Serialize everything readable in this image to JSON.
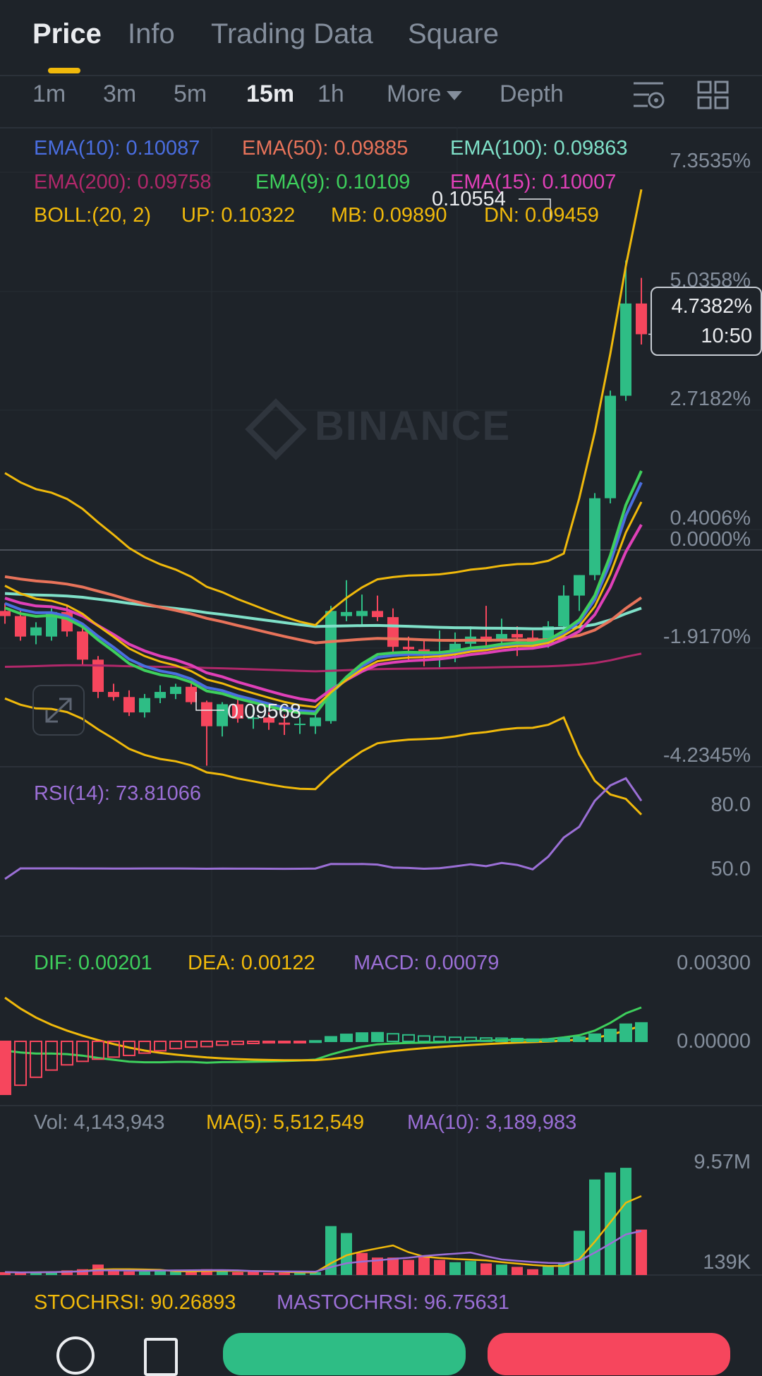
{
  "tabs": [
    {
      "label": "Price",
      "active": true
    },
    {
      "label": "Info"
    },
    {
      "label": "Trading Data"
    },
    {
      "label": "Square"
    }
  ],
  "intervals": [
    {
      "label": "1m"
    },
    {
      "label": "3m"
    },
    {
      "label": "5m"
    },
    {
      "label": "15m",
      "active": true
    },
    {
      "label": "1h"
    }
  ],
  "more_label": "More",
  "depth_label": "Depth",
  "legend": {
    "ema10": "EMA(10): 0.10087",
    "ema50": "EMA(50): 0.09885",
    "ema100": "EMA(100): 0.09863",
    "ema200": "EMA(200): 0.09758",
    "ema9": "EMA(9): 0.10109",
    "ema15": "EMA(15): 0.10007",
    "boll": "BOLL:(20, 2)",
    "up": "UP: 0.10322",
    "mb": "MB: 0.09890",
    "dn": "DN: 0.09459"
  },
  "price_axis": [
    "7.3535%",
    "5.0358%",
    "2.7182%",
    "0.4006%",
    "0.0000%",
    "-1.9170%",
    "-4.2345%"
  ],
  "high_label": "0.10554",
  "low_label": "0.09568",
  "watermark": "BINANCE",
  "current": {
    "pct": "4.7382%",
    "countdown": "10:50"
  },
  "rsi": {
    "label": "RSI(14): 73.81066",
    "axis": [
      "80.0",
      "50.0"
    ]
  },
  "macd": {
    "dif": "DIF: 0.00201",
    "dea": "DEA: 0.00122",
    "macd": "MACD: 0.00079",
    "axis": [
      "0.00300",
      "0.00000"
    ]
  },
  "vol": {
    "vol": "Vol: 4,143,943",
    "ma5": "MA(5): 5,512,549",
    "ma10": "MA(10): 3,189,983",
    "axis": [
      "9.57M",
      "139K"
    ]
  },
  "stoch": {
    "stoch": "STOCHRSI: 90.26893",
    "mastoch": "MASTOCHRSI: 96.75631"
  },
  "colors": {
    "up": "#2ebd85",
    "down": "#f6465d",
    "ema10": "#4a6ee0",
    "ema50": "#e8735a",
    "ema100": "#7fe0c8",
    "ema200": "#b0286a",
    "ema9": "#3ecf5c",
    "ema15": "#e040b8",
    "boll": "#f0b90b",
    "purple": "#9b6fd6",
    "accent": "#f0b90b"
  },
  "candles": [
    {
      "o": 0.0987,
      "h": 0.09885,
      "l": 0.09845,
      "c": 0.0986
    },
    {
      "o": 0.0986,
      "h": 0.09872,
      "l": 0.09812,
      "c": 0.0982
    },
    {
      "o": 0.09822,
      "h": 0.09848,
      "l": 0.09805,
      "c": 0.09838
    },
    {
      "o": 0.0982,
      "h": 0.09875,
      "l": 0.09812,
      "c": 0.09868
    },
    {
      "o": 0.09868,
      "h": 0.0988,
      "l": 0.0982,
      "c": 0.0983
    },
    {
      "o": 0.0983,
      "h": 0.09845,
      "l": 0.09765,
      "c": 0.09775
    },
    {
      "o": 0.09775,
      "h": 0.09782,
      "l": 0.097,
      "c": 0.09712
    },
    {
      "o": 0.09712,
      "h": 0.09728,
      "l": 0.09695,
      "c": 0.09702
    },
    {
      "o": 0.09702,
      "h": 0.09715,
      "l": 0.09665,
      "c": 0.09672
    },
    {
      "o": 0.09672,
      "h": 0.09708,
      "l": 0.09662,
      "c": 0.097
    },
    {
      "o": 0.097,
      "h": 0.09725,
      "l": 0.0969,
      "c": 0.09712
    },
    {
      "o": 0.09708,
      "h": 0.09728,
      "l": 0.09698,
      "c": 0.09722
    },
    {
      "o": 0.09722,
      "h": 0.09728,
      "l": 0.09688,
      "c": 0.09692
    },
    {
      "o": 0.09692,
      "h": 0.09695,
      "l": 0.09568,
      "c": 0.09645
    },
    {
      "o": 0.09645,
      "h": 0.09692,
      "l": 0.09625,
      "c": 0.09688
    },
    {
      "o": 0.09688,
      "h": 0.09698,
      "l": 0.09652,
      "c": 0.0966
    },
    {
      "o": 0.0966,
      "h": 0.0968,
      "l": 0.0964,
      "c": 0.09662
    },
    {
      "o": 0.09662,
      "h": 0.09672,
      "l": 0.09638,
      "c": 0.09652
    },
    {
      "o": 0.09652,
      "h": 0.09668,
      "l": 0.09628,
      "c": 0.09648
    },
    {
      "o": 0.09648,
      "h": 0.09662,
      "l": 0.0963,
      "c": 0.0965
    },
    {
      "o": 0.09645,
      "h": 0.09672,
      "l": 0.0963,
      "c": 0.09662
    },
    {
      "o": 0.09655,
      "h": 0.0988,
      "l": 0.0965,
      "c": 0.0987
    },
    {
      "o": 0.0986,
      "h": 0.0993,
      "l": 0.0985,
      "c": 0.09868
    },
    {
      "o": 0.0986,
      "h": 0.09902,
      "l": 0.09842,
      "c": 0.0987
    },
    {
      "o": 0.0987,
      "h": 0.099,
      "l": 0.0985,
      "c": 0.09858
    },
    {
      "o": 0.09858,
      "h": 0.09875,
      "l": 0.0979,
      "c": 0.098
    },
    {
      "o": 0.098,
      "h": 0.0982,
      "l": 0.0977,
      "c": 0.09795
    },
    {
      "o": 0.09795,
      "h": 0.09812,
      "l": 0.09762,
      "c": 0.09785
    },
    {
      "o": 0.09785,
      "h": 0.09832,
      "l": 0.0976,
      "c": 0.0979
    },
    {
      "o": 0.0979,
      "h": 0.09828,
      "l": 0.0977,
      "c": 0.09806
    },
    {
      "o": 0.09806,
      "h": 0.0984,
      "l": 0.0979,
      "c": 0.0982
    },
    {
      "o": 0.0982,
      "h": 0.0988,
      "l": 0.098,
      "c": 0.0981
    },
    {
      "o": 0.09812,
      "h": 0.09855,
      "l": 0.098,
      "c": 0.09825
    },
    {
      "o": 0.09825,
      "h": 0.0984,
      "l": 0.09782,
      "c": 0.09818
    },
    {
      "o": 0.09818,
      "h": 0.09832,
      "l": 0.098,
      "c": 0.09805
    },
    {
      "o": 0.09808,
      "h": 0.0985,
      "l": 0.09798,
      "c": 0.0984
    },
    {
      "o": 0.0984,
      "h": 0.0992,
      "l": 0.0983,
      "c": 0.099
    },
    {
      "o": 0.099,
      "h": 0.0994,
      "l": 0.0987,
      "c": 0.0994
    },
    {
      "o": 0.0994,
      "h": 0.101,
      "l": 0.0993,
      "c": 0.1009
    },
    {
      "o": 0.1009,
      "h": 0.103,
      "l": 0.1008,
      "c": 0.1029
    },
    {
      "o": 0.1029,
      "h": 0.10554,
      "l": 0.1028,
      "c": 0.1047
    },
    {
      "o": 0.1047,
      "h": 0.1052,
      "l": 0.1039,
      "c": 0.1041
    }
  ],
  "volumes": [
    {
      "v": 0.25,
      "up": false
    },
    {
      "v": 0.2,
      "up": false
    },
    {
      "v": 0.25,
      "up": true
    },
    {
      "v": 0.3,
      "up": true
    },
    {
      "v": 0.4,
      "up": false
    },
    {
      "v": 0.5,
      "up": false
    },
    {
      "v": 0.9,
      "up": false
    },
    {
      "v": 0.4,
      "up": false
    },
    {
      "v": 0.3,
      "up": false
    },
    {
      "v": 0.3,
      "up": true
    },
    {
      "v": 0.35,
      "up": true
    },
    {
      "v": 0.3,
      "up": true
    },
    {
      "v": 0.3,
      "up": false
    },
    {
      "v": 0.5,
      "up": false
    },
    {
      "v": 0.4,
      "up": true
    },
    {
      "v": 0.25,
      "up": false
    },
    {
      "v": 0.3,
      "up": false
    },
    {
      "v": 0.2,
      "up": false
    },
    {
      "v": 0.2,
      "up": false
    },
    {
      "v": 0.2,
      "up": true
    },
    {
      "v": 0.25,
      "up": true
    },
    {
      "v": 4.2,
      "up": true
    },
    {
      "v": 3.6,
      "up": true
    },
    {
      "v": 1.9,
      "up": false
    },
    {
      "v": 1.5,
      "up": false
    },
    {
      "v": 1.5,
      "up": false
    },
    {
      "v": 1.3,
      "up": false
    },
    {
      "v": 1.7,
      "up": false
    },
    {
      "v": 1.3,
      "up": false
    },
    {
      "v": 1.1,
      "up": true
    },
    {
      "v": 1.2,
      "up": true
    },
    {
      "v": 1.0,
      "up": false
    },
    {
      "v": 0.9,
      "up": true
    },
    {
      "v": 0.7,
      "up": false
    },
    {
      "v": 0.5,
      "up": false
    },
    {
      "v": 0.8,
      "up": true
    },
    {
      "v": 1.0,
      "up": true
    },
    {
      "v": 3.8,
      "up": true
    },
    {
      "v": 8.2,
      "up": true
    },
    {
      "v": 8.8,
      "up": true
    },
    {
      "v": 9.2,
      "up": true
    },
    {
      "v": 3.9,
      "up": false
    }
  ]
}
